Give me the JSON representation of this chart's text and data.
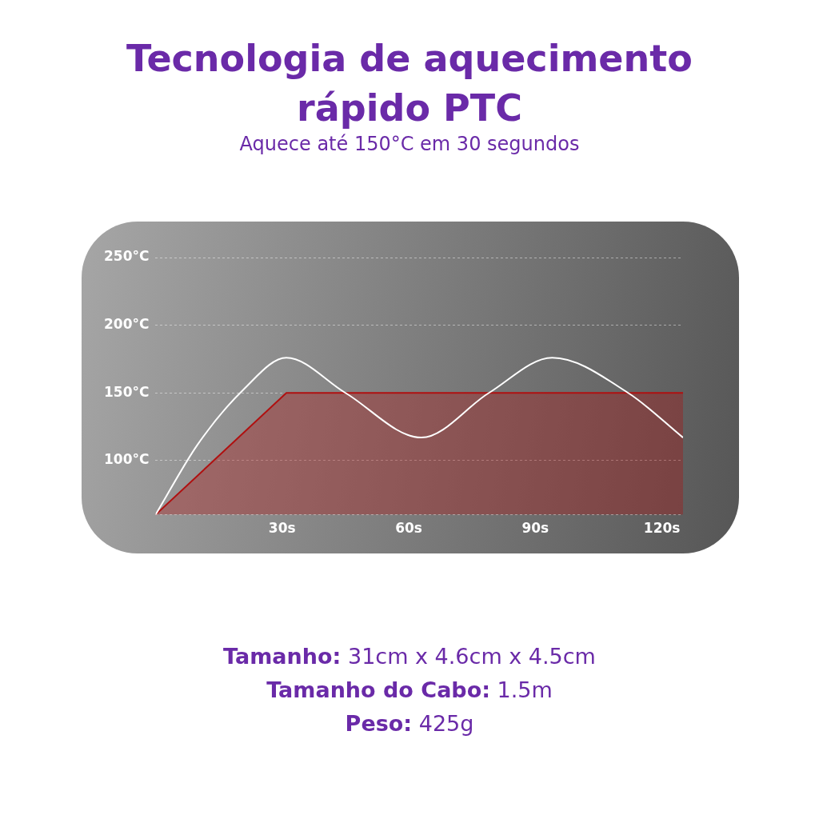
{
  "chart_data": {
    "type": "area",
    "title": "Tecnologia de aquecimento rápido PTC",
    "subtitle": "Aquece até 150°C em 30 segundos",
    "series": [
      {
        "color": "#b01010",
        "x": [
          0,
          31,
          125
        ],
        "values": [
          60,
          150,
          150
        ]
      },
      {
        "type": "line",
        "color": "#ffffff",
        "x": [
          0,
          10,
          21,
          31,
          45,
          63,
          79,
          94,
          112,
          125
        ],
        "values": [
          60,
          112,
          153,
          176,
          150,
          117,
          150,
          176,
          150,
          117
        ]
      }
    ],
    "xlim": [
      0,
      125
    ],
    "xticks": [
      {
        "value": 30,
        "label": "30s"
      },
      {
        "value": 60,
        "label": "60s"
      },
      {
        "value": 90,
        "label": "90s"
      },
      {
        "value": 120,
        "label": "120s"
      }
    ],
    "ylim": [
      60,
      250
    ],
    "yticks": [
      {
        "value": 60,
        "label": null
      },
      {
        "value": 100,
        "label": "100°C"
      },
      {
        "value": 150,
        "label": "150°C"
      },
      {
        "value": 200,
        "label": "200°C"
      },
      {
        "value": 250,
        "label": "250°C"
      }
    ],
    "grid": "y",
    "legend": false,
    "marker": "none",
    "line_style": "solid",
    "annotations": [
      "Tamanho: 31cm x 4.6cm x 4.5cm",
      "Tamanho do Cabo: 1.5m",
      "Peso: 425g"
    ]
  }
}
